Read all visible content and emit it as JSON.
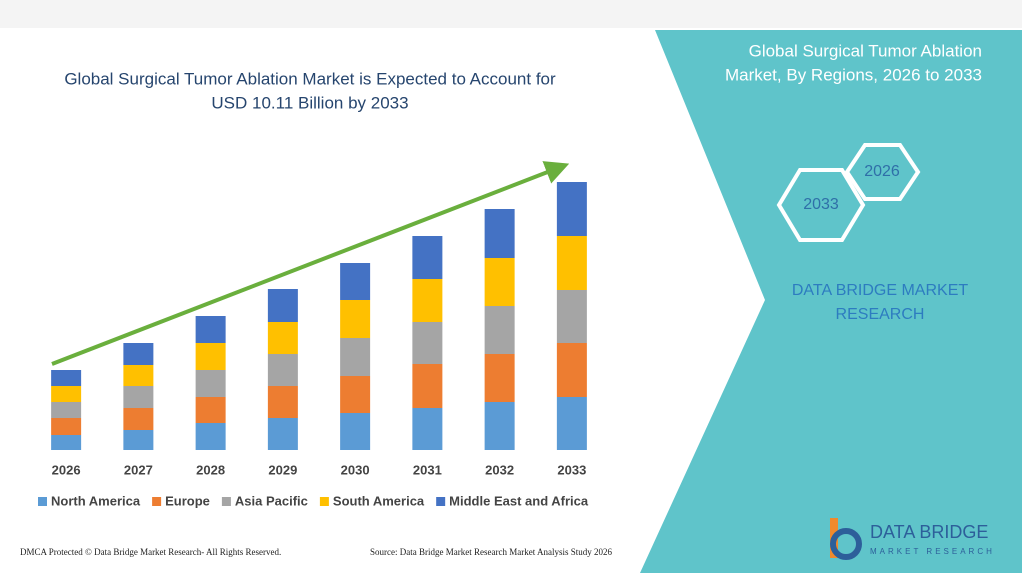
{
  "chart_data": {
    "type": "bar",
    "stacked": true,
    "title": [
      "Global Surgical Tumor Ablation Market is Expected to Account for",
      "USD 10.11 Billion by 2033"
    ],
    "categories": [
      "2026",
      "2027",
      "2028",
      "2029",
      "2030",
      "2031",
      "2032",
      "2033"
    ],
    "series": [
      {
        "name": "North America",
        "color": "#5b9bd5",
        "values": [
          15,
          20,
          27,
          32,
          37,
          42,
          48,
          53
        ]
      },
      {
        "name": "Europe",
        "color": "#ed7d31",
        "values": [
          17,
          22,
          26,
          32,
          37,
          44,
          48,
          54
        ]
      },
      {
        "name": "Asia Pacific",
        "color": "#a5a5a5",
        "values": [
          16,
          22,
          27,
          32,
          38,
          42,
          48,
          53
        ]
      },
      {
        "name": "South America",
        "color": "#ffc000",
        "values": [
          16,
          21,
          27,
          32,
          38,
          43,
          48,
          54
        ]
      },
      {
        "name": "Middle East and Africa",
        "color": "#4472c4",
        "values": [
          16,
          22,
          27,
          33,
          37,
          43,
          49,
          54
        ]
      }
    ],
    "ylim": [
      0,
      270
    ],
    "grid": false,
    "legend": "bottom",
    "trend_arrow_color": "#6aaf3d"
  },
  "sidebar": {
    "title": [
      "Global Surgical Tumor Ablation",
      "Market, By Regions, 2026 to 2033"
    ],
    "hex_labels": [
      "2026",
      "2033"
    ],
    "brand": [
      "DATA BRIDGE MARKET",
      "RESEARCH"
    ]
  },
  "footer": {
    "left": "DMCA Protected © Data Bridge Market Research- All Rights Reserved.",
    "right": "Source: Data Bridge Market Research Market Analysis Study 2026"
  },
  "logo": {
    "name": "DATA BRIDGE",
    "tagline": "MARKET RESEARCH"
  }
}
